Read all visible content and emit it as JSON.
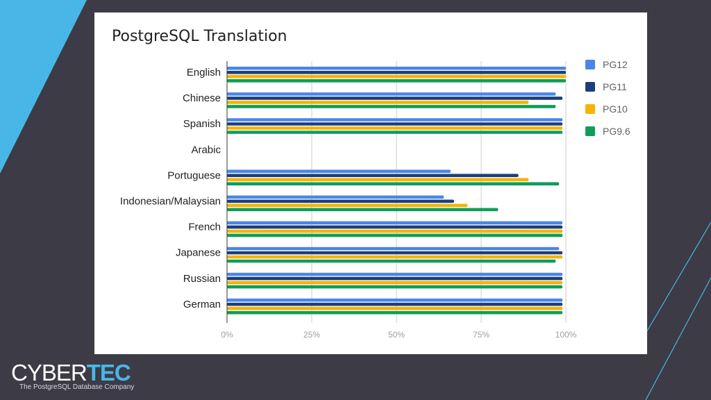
{
  "colors": {
    "background": "#3c3b46",
    "accent": "#49b6e8",
    "card": "#ffffff",
    "PG12": "#4a86e8",
    "PG11": "#1c3f7c",
    "PG10": "#f4b400",
    "PG9.6": "#0f9d58"
  },
  "logo": {
    "word_left": "CYBER",
    "word_right": "TEC",
    "tagline": "The PostgreSQL Database Company"
  },
  "chart_data": {
    "type": "bar",
    "orientation": "horizontal",
    "title": "PostgreSQL Translation",
    "xlabel": "",
    "ylabel": "",
    "xlim": [
      0,
      1
    ],
    "x_tick_labels": [
      "0%",
      "25%",
      "50%",
      "75%",
      "100%"
    ],
    "grid": true,
    "legend_position": "right",
    "categories": [
      "English",
      "Chinese",
      "Spanish",
      "Arabic",
      "Portuguese",
      "Indonesian/Malaysian",
      "French",
      "Japanese",
      "Russian",
      "German"
    ],
    "series": [
      {
        "name": "PG12",
        "color": "#4a86e8",
        "values": [
          1.0,
          0.97,
          0.99,
          0,
          0.66,
          0.64,
          0.99,
          0.98,
          0.99,
          0.99
        ]
      },
      {
        "name": "PG11",
        "color": "#1c3f7c",
        "values": [
          1.0,
          0.99,
          0.99,
          0,
          0.86,
          0.67,
          0.99,
          0.99,
          0.99,
          0.99
        ]
      },
      {
        "name": "PG10",
        "color": "#f4b400",
        "values": [
          1.0,
          0.89,
          0.99,
          0,
          0.89,
          0.71,
          0.99,
          0.99,
          0.99,
          0.99
        ]
      },
      {
        "name": "PG9.6",
        "color": "#0f9d58",
        "values": [
          1.0,
          0.97,
          0.99,
          0,
          0.98,
          0.8,
          0.99,
          0.97,
          0.99,
          0.99
        ]
      }
    ]
  }
}
